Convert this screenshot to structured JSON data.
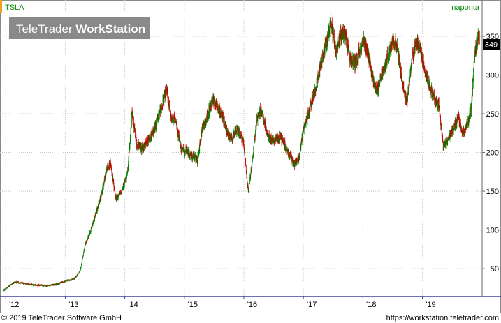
{
  "header": {
    "symbol": "TSLA",
    "period_label": "naponta",
    "watermark_brand": "TeleTrader ",
    "watermark_product": "WorkStation"
  },
  "footer": {
    "copyright": "© 2019 TeleTrader Software GmbH",
    "url": "https://workstation.teletrader.com"
  },
  "colors": {
    "up": "#008000",
    "down": "#cc0000",
    "grid": "#c8c8c8",
    "accent": "#f0a020",
    "header_text": "#0a8a0a",
    "watermark_bg": "#7f7f7f"
  },
  "chart_data": {
    "type": "candlestick",
    "title": "TSLA",
    "interval": "naponta",
    "y_ticks": [
      50,
      100,
      150,
      200,
      250,
      300,
      350
    ],
    "ylim": [
      15,
      395
    ],
    "x_ticks": [
      "'12",
      "'13",
      "'14",
      "'15",
      "'16",
      "'17",
      "'18",
      "'19"
    ],
    "x_range": [
      2011.95,
      2019.98
    ],
    "last_value_label": "349",
    "grid": true,
    "trend": [
      [
        2011.96,
        22
      ],
      [
        2012.15,
        33
      ],
      [
        2012.3,
        31
      ],
      [
        2012.5,
        29
      ],
      [
        2012.7,
        28
      ],
      [
        2012.85,
        30
      ],
      [
        2013.0,
        34
      ],
      [
        2013.15,
        37
      ],
      [
        2013.25,
        47
      ],
      [
        2013.33,
        80
      ],
      [
        2013.42,
        98
      ],
      [
        2013.5,
        118
      ],
      [
        2013.6,
        143
      ],
      [
        2013.7,
        180
      ],
      [
        2013.76,
        185
      ],
      [
        2013.85,
        140
      ],
      [
        2013.95,
        150
      ],
      [
        2014.05,
        175
      ],
      [
        2014.12,
        250
      ],
      [
        2014.2,
        210
      ],
      [
        2014.3,
        205
      ],
      [
        2014.4,
        215
      ],
      [
        2014.5,
        230
      ],
      [
        2014.62,
        260
      ],
      [
        2014.7,
        280
      ],
      [
        2014.78,
        245
      ],
      [
        2014.85,
        240
      ],
      [
        2014.95,
        205
      ],
      [
        2015.05,
        200
      ],
      [
        2015.15,
        195
      ],
      [
        2015.22,
        190
      ],
      [
        2015.3,
        230
      ],
      [
        2015.4,
        250
      ],
      [
        2015.48,
        270
      ],
      [
        2015.55,
        260
      ],
      [
        2015.65,
        245
      ],
      [
        2015.72,
        225
      ],
      [
        2015.8,
        220
      ],
      [
        2015.9,
        230
      ],
      [
        2016.0,
        210
      ],
      [
        2016.07,
        150
      ],
      [
        2016.12,
        175
      ],
      [
        2016.22,
        245
      ],
      [
        2016.3,
        255
      ],
      [
        2016.4,
        220
      ],
      [
        2016.5,
        215
      ],
      [
        2016.62,
        220
      ],
      [
        2016.75,
        200
      ],
      [
        2016.85,
        185
      ],
      [
        2016.92,
        190
      ],
      [
        2017.0,
        230
      ],
      [
        2017.1,
        255
      ],
      [
        2017.2,
        280
      ],
      [
        2017.28,
        310
      ],
      [
        2017.38,
        340
      ],
      [
        2017.46,
        370
      ],
      [
        2017.55,
        330
      ],
      [
        2017.62,
        350
      ],
      [
        2017.7,
        355
      ],
      [
        2017.78,
        320
      ],
      [
        2017.87,
        315
      ],
      [
        2017.95,
        330
      ],
      [
        2018.02,
        345
      ],
      [
        2018.1,
        320
      ],
      [
        2018.18,
        290
      ],
      [
        2018.25,
        280
      ],
      [
        2018.32,
        300
      ],
      [
        2018.42,
        325
      ],
      [
        2018.5,
        345
      ],
      [
        2018.58,
        335
      ],
      [
        2018.66,
        290
      ],
      [
        2018.74,
        265
      ],
      [
        2018.82,
        320
      ],
      [
        2018.9,
        345
      ],
      [
        2018.98,
        325
      ],
      [
        2019.05,
        305
      ],
      [
        2019.12,
        285
      ],
      [
        2019.2,
        270
      ],
      [
        2019.28,
        260
      ],
      [
        2019.35,
        205
      ],
      [
        2019.42,
        215
      ],
      [
        2019.52,
        230
      ],
      [
        2019.6,
        245
      ],
      [
        2019.68,
        225
      ],
      [
        2019.76,
        240
      ],
      [
        2019.82,
        256
      ],
      [
        2019.87,
        320
      ],
      [
        2019.92,
        345
      ],
      [
        2019.96,
        349
      ]
    ]
  }
}
